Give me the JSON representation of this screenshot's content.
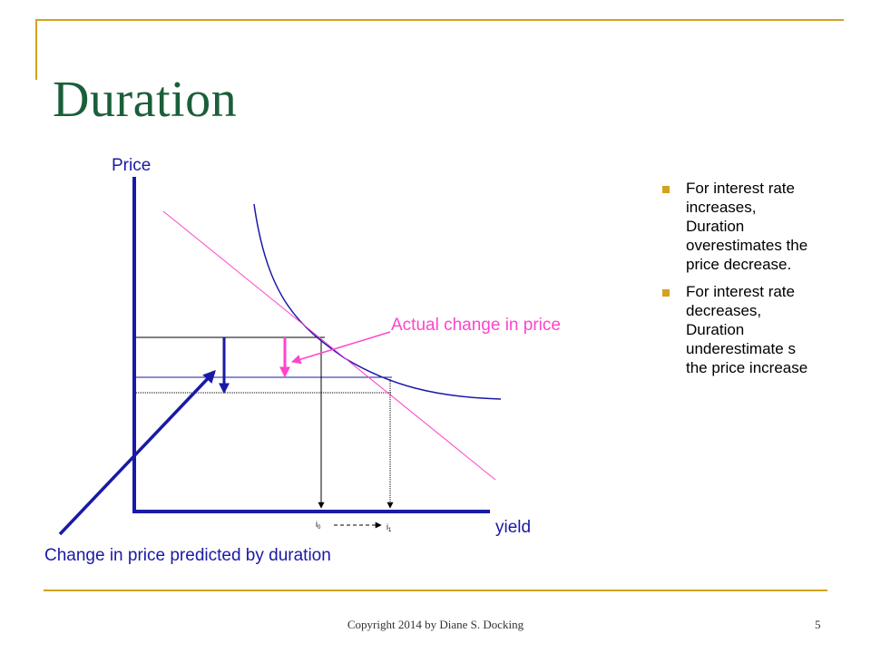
{
  "slide": {
    "title": "Duration",
    "footer": "Copyright 2014 by Diane S. Docking",
    "page_number": "5",
    "accent_color": "#d3a21f",
    "title_color": "#1b5e3b"
  },
  "diagram": {
    "y_axis_label": "Price",
    "x_axis_label": "yield",
    "i0_label": "i",
    "i0_sub": "0",
    "i1_label": "i",
    "i1_sub": "1",
    "actual_change_label": "Actual change in price",
    "duration_change_label": "Change in price predicted by duration",
    "curve_color": "#1a1aa6",
    "tangent_color": "#ff44cc",
    "label_color_actual": "#ff44cc",
    "label_color_duration": "#1a1aa6"
  },
  "bullets": [
    "For interest rate increases, Duration overestimates the price decrease.",
    "For interest rate decreases, Duration underestimate s the price increase"
  ]
}
